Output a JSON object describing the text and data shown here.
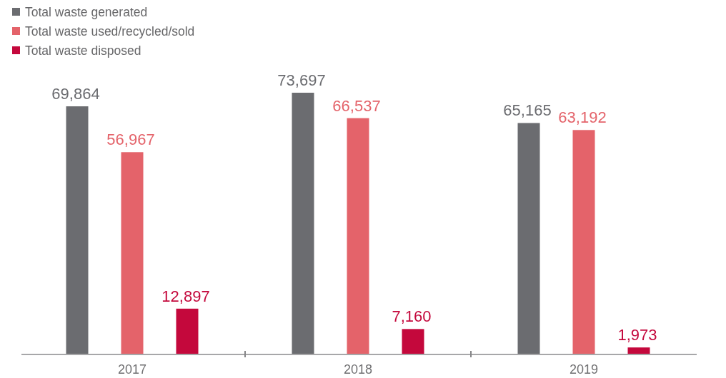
{
  "chart_data": {
    "type": "bar",
    "categories": [
      "2017",
      "2018",
      "2019"
    ],
    "series": [
      {
        "name": "Total waste generated",
        "color": "#6b6c70",
        "values": [
          69864,
          73697,
          65165
        ],
        "value_labels": [
          "69,864",
          "73,697",
          "65,165"
        ]
      },
      {
        "name": "Total waste used/recycled/sold",
        "color": "#e4636a",
        "values": [
          56967,
          66537,
          63192
        ],
        "value_labels": [
          "56,967",
          "66,537",
          "63,192"
        ]
      },
      {
        "name": "Total waste disposed",
        "color": "#c4083c",
        "values": [
          12897,
          7160,
          1973
        ],
        "value_labels": [
          "12,897",
          "7,160",
          "1,973"
        ]
      }
    ],
    "legend": "top left"
  }
}
